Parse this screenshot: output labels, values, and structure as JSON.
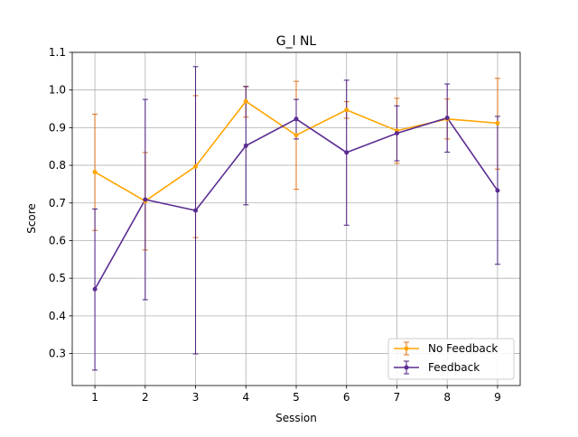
{
  "chart_data": {
    "type": "line",
    "title": "G_l NL",
    "xlabel": "Session",
    "ylabel": "Score",
    "x": [
      1,
      2,
      3,
      4,
      5,
      6,
      7,
      8,
      9
    ],
    "xlim": [
      0.55,
      9.45
    ],
    "ylim": [
      0.215,
      1.1
    ],
    "yticks": [
      0.3,
      0.4,
      0.5,
      0.6,
      0.7,
      0.8,
      0.9,
      1.0,
      1.1
    ],
    "ytick_labels": [
      "0.3",
      "0.4",
      "0.5",
      "0.6",
      "0.7",
      "0.8",
      "0.9",
      "1.0",
      "1.1"
    ],
    "xtick_labels": [
      "1",
      "2",
      "3",
      "4",
      "5",
      "6",
      "7",
      "8",
      "9"
    ],
    "grid": true,
    "legend_position": "bottom-right",
    "series": [
      {
        "name": "No Feedback",
        "color": "#FFA500",
        "error_color": "#E0701A",
        "values": [
          0.782,
          0.705,
          0.797,
          0.97,
          0.88,
          0.947,
          0.892,
          0.923,
          0.912
        ],
        "err_low": [
          0.627,
          0.575,
          0.608,
          0.928,
          0.736,
          0.925,
          0.805,
          0.87,
          0.79
        ],
        "err_high": [
          0.936,
          0.834,
          0.985,
          1.01,
          1.023,
          0.969,
          0.978,
          0.976,
          1.031
        ]
      },
      {
        "name": "Feedback",
        "color": "#5B2C91",
        "error_color": "#4B1F80",
        "values": [
          0.471,
          0.709,
          0.68,
          0.852,
          0.923,
          0.834,
          0.885,
          0.926,
          0.733
        ],
        "err_low": [
          0.256,
          0.443,
          0.299,
          0.695,
          0.87,
          0.641,
          0.812,
          0.835,
          0.537
        ],
        "err_high": [
          0.684,
          0.975,
          1.062,
          1.009,
          0.975,
          1.026,
          0.958,
          1.016,
          0.93
        ]
      }
    ]
  }
}
